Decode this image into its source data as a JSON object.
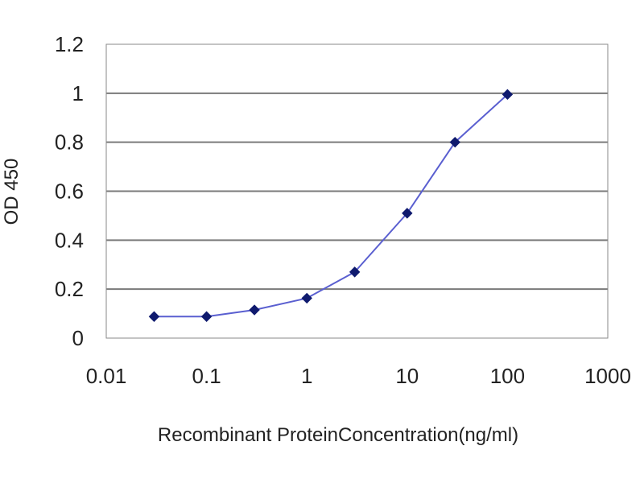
{
  "chart_data": {
    "type": "line",
    "xlabel": "Recombinant ProteinConcentration(ng/ml)",
    "ylabel": "OD 450",
    "x_scale": "log",
    "xlim": [
      0.01,
      1000
    ],
    "ylim": [
      0,
      1.2
    ],
    "x_ticks": [
      "0.01",
      "0.1",
      "1",
      "10",
      "100",
      "1000"
    ],
    "y_ticks": [
      "0",
      "0.2",
      "0.4",
      "0.6",
      "0.8",
      "1",
      "1.2"
    ],
    "grid": "horizontal",
    "series": [
      {
        "x": [
          0.03,
          0.1,
          0.3,
          1,
          3,
          10,
          30,
          100
        ],
        "y": [
          0.088,
          0.088,
          0.115,
          0.163,
          0.27,
          0.51,
          0.8,
          0.995
        ]
      }
    ],
    "colors": {
      "line": "#5a5fd0",
      "marker": "#0f1a6e",
      "grid": "#7a7a7a",
      "frame": "#8a8a8a"
    }
  }
}
